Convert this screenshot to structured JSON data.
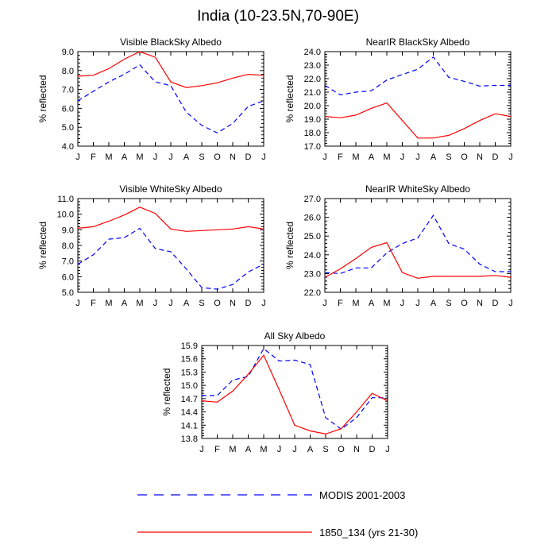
{
  "page": {
    "title": "India (10-23.5N,70-90E)"
  },
  "colors": {
    "modis": "#0000ff",
    "model": "#ff0000",
    "axis": "#000000"
  },
  "legend": {
    "items": [
      {
        "label": "MODIS 2001-2003",
        "style": "dashed",
        "color": "#0000ff"
      },
      {
        "label": "1850_134 (yrs 21-30)",
        "style": "solid",
        "color": "#ff0000"
      }
    ]
  },
  "chart_data": [
    {
      "type": "line",
      "title": "Visible BlackSky Albedo",
      "xlabel": "",
      "ylabel": "% reflected",
      "categories": [
        "J",
        "F",
        "M",
        "A",
        "M",
        "J",
        "J",
        "A",
        "S",
        "O",
        "N",
        "D",
        "J"
      ],
      "yticks": [
        "4.0",
        "5.0",
        "6.0",
        "7.0",
        "8.0",
        "9.0"
      ],
      "ylim": [
        4.0,
        9.0
      ],
      "series": [
        {
          "name": "MODIS 2001-2003",
          "style": "dashed",
          "values": [
            6.4,
            6.9,
            7.4,
            7.8,
            8.3,
            7.4,
            7.2,
            5.8,
            5.1,
            4.7,
            5.2,
            6.1,
            6.4
          ]
        },
        {
          "name": "1850_134 (yrs 21-30)",
          "style": "solid",
          "values": [
            7.7,
            7.75,
            8.1,
            8.6,
            9.0,
            8.7,
            7.4,
            7.1,
            7.2,
            7.35,
            7.6,
            7.8,
            7.75
          ]
        }
      ]
    },
    {
      "type": "line",
      "title": "NearIR BlackSky Albedo",
      "xlabel": "",
      "ylabel": "% reflected",
      "categories": [
        "J",
        "F",
        "M",
        "A",
        "M",
        "J",
        "J",
        "A",
        "S",
        "O",
        "N",
        "D",
        "J"
      ],
      "yticks": [
        "17.0",
        "18.0",
        "19.0",
        "20.0",
        "21.0",
        "22.0",
        "23.0",
        "24.0"
      ],
      "ylim": [
        17.0,
        24.0
      ],
      "series": [
        {
          "name": "MODIS 2001-2003",
          "style": "dashed",
          "values": [
            21.5,
            20.8,
            21.0,
            21.1,
            21.9,
            22.3,
            22.7,
            23.6,
            22.1,
            21.8,
            21.45,
            21.5,
            21.5
          ]
        },
        {
          "name": "1850_134 (yrs 21-30)",
          "style": "solid",
          "values": [
            19.2,
            19.1,
            19.3,
            19.8,
            20.2,
            18.9,
            17.6,
            17.6,
            17.8,
            18.3,
            18.9,
            19.4,
            19.2
          ]
        }
      ]
    },
    {
      "type": "line",
      "title": "Visible WhiteSky Albedo",
      "xlabel": "",
      "ylabel": "% reflected",
      "categories": [
        "J",
        "F",
        "M",
        "A",
        "M",
        "J",
        "J",
        "A",
        "S",
        "O",
        "N",
        "D",
        "J"
      ],
      "yticks": [
        "5.0",
        "6.0",
        "7.0",
        "8.0",
        "9.0",
        "10.0",
        "11.0"
      ],
      "ylim": [
        5.0,
        11.0
      ],
      "series": [
        {
          "name": "MODIS 2001-2003",
          "style": "dashed",
          "values": [
            6.8,
            7.4,
            8.4,
            8.5,
            9.1,
            7.8,
            7.6,
            6.5,
            5.3,
            5.2,
            5.5,
            6.3,
            6.8
          ]
        },
        {
          "name": "1850_134 (yrs 21-30)",
          "style": "solid",
          "values": [
            9.1,
            9.2,
            9.55,
            9.95,
            10.45,
            10.05,
            9.05,
            8.9,
            8.95,
            9.0,
            9.05,
            9.2,
            9.05
          ]
        }
      ]
    },
    {
      "type": "line",
      "title": "NearIR WhiteSky Albedo",
      "xlabel": "",
      "ylabel": "% reflected",
      "categories": [
        "J",
        "F",
        "M",
        "A",
        "M",
        "J",
        "J",
        "A",
        "S",
        "O",
        "N",
        "D",
        "J"
      ],
      "yticks": [
        "22.0",
        "23.0",
        "24.0",
        "25.0",
        "26.0",
        "27.0"
      ],
      "ylim": [
        22.0,
        27.0
      ],
      "series": [
        {
          "name": "MODIS 2001-2003",
          "style": "dashed",
          "values": [
            23.05,
            23.0,
            23.3,
            23.3,
            24.1,
            24.6,
            24.9,
            26.1,
            24.6,
            24.3,
            23.5,
            23.1,
            23.1
          ]
        },
        {
          "name": "1850_134 (yrs 21-30)",
          "style": "solid",
          "values": [
            22.8,
            23.25,
            23.8,
            24.4,
            24.65,
            23.05,
            22.75,
            22.85,
            22.85,
            22.85,
            22.85,
            22.9,
            22.8
          ]
        }
      ]
    },
    {
      "type": "line",
      "title": "All Sky Albedo",
      "xlabel": "",
      "ylabel": "% reflected",
      "categories": [
        "J",
        "F",
        "M",
        "A",
        "M",
        "J",
        "J",
        "A",
        "S",
        "O",
        "N",
        "D",
        "J"
      ],
      "yticks": [
        "13.8",
        "14.1",
        "14.4",
        "14.7",
        "15.0",
        "15.3",
        "15.6",
        "15.9"
      ],
      "ylim": [
        13.8,
        15.9
      ],
      "series": [
        {
          "name": "MODIS 2001-2003",
          "style": "dashed",
          "values": [
            14.77,
            14.77,
            15.12,
            15.2,
            15.83,
            15.55,
            15.57,
            15.47,
            14.27,
            14.01,
            14.27,
            14.72,
            14.72
          ]
        },
        {
          "name": "1850_134 (yrs 21-30)",
          "style": "solid",
          "values": [
            14.65,
            14.62,
            14.87,
            15.25,
            15.68,
            14.9,
            14.1,
            13.97,
            13.9,
            14.02,
            14.4,
            14.82,
            14.65
          ]
        }
      ]
    }
  ]
}
